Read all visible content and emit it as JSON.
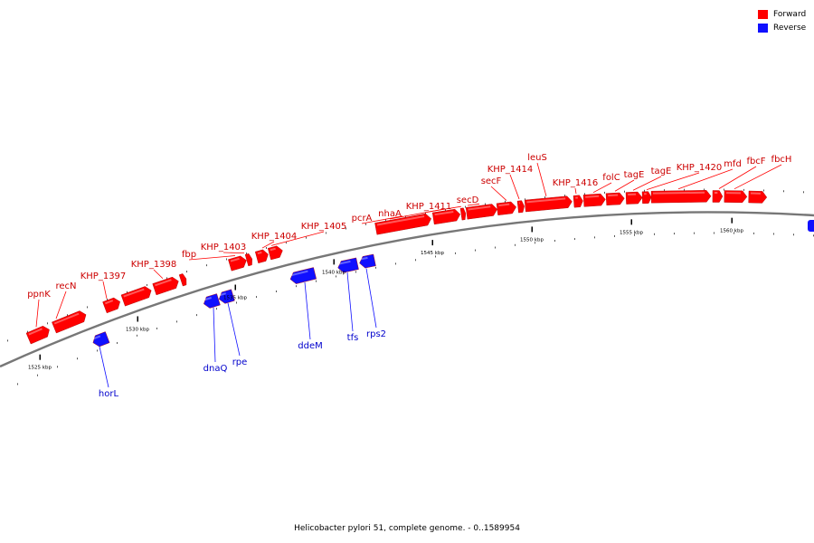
{
  "legend": {
    "forward_label": "Forward",
    "reverse_label": "Reverse",
    "forward_color": "#ff0000",
    "reverse_color": "#1010ff"
  },
  "caption": "Helicobacter pylori 51, complete genome. - 0..1589954",
  "colors": {
    "forward": "#ff0000",
    "reverse": "#1010ff",
    "backbone": "#777777",
    "label_forward": "#cc0000",
    "label_reverse": "#0000cc"
  },
  "kbp_ticks": [
    "1525 kbp",
    "1530 kbp",
    "1535 kbp",
    "1540 kbp",
    "1545 kbp",
    "1550 kbp",
    "1555 kbp",
    "1560 kbp"
  ],
  "forward_genes": [
    "ppnK",
    "recN",
    "KHP_1397",
    "KHP_1398",
    "fbp",
    "KHP_1403",
    "KHP_1404",
    "KHP_1405",
    "pcrA",
    "nhaA",
    "KHP_1411",
    "secD",
    "secF",
    "KHP_1414",
    "leuS",
    "KHP_1416",
    "folC",
    "tagE",
    "tagE",
    "KHP_1420",
    "mfd",
    "fbcF",
    "fbcH"
  ],
  "reverse_genes": [
    "horL",
    "dnaQ",
    "rpe",
    "ddeM",
    "tfs",
    "rps2"
  ]
}
